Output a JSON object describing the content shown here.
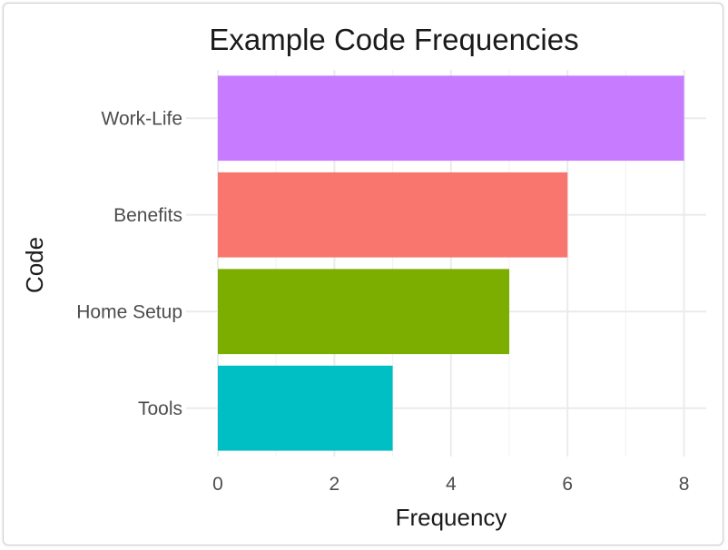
{
  "chart_data": {
    "type": "bar",
    "orientation": "horizontal",
    "title": "Example Code Frequencies",
    "xlabel": "Frequency",
    "ylabel": "Code",
    "categories": [
      "Work-Life",
      "Benefits",
      "Home Setup",
      "Tools"
    ],
    "values": [
      8,
      6,
      5,
      3
    ],
    "colors": [
      "#C77CFF",
      "#F8766D",
      "#7CAE00",
      "#00BFC4"
    ],
    "xlim": [
      0,
      8.4
    ],
    "x_ticks": [
      "0",
      "2",
      "4",
      "6",
      "8"
    ],
    "grid": true,
    "legend": "none"
  }
}
